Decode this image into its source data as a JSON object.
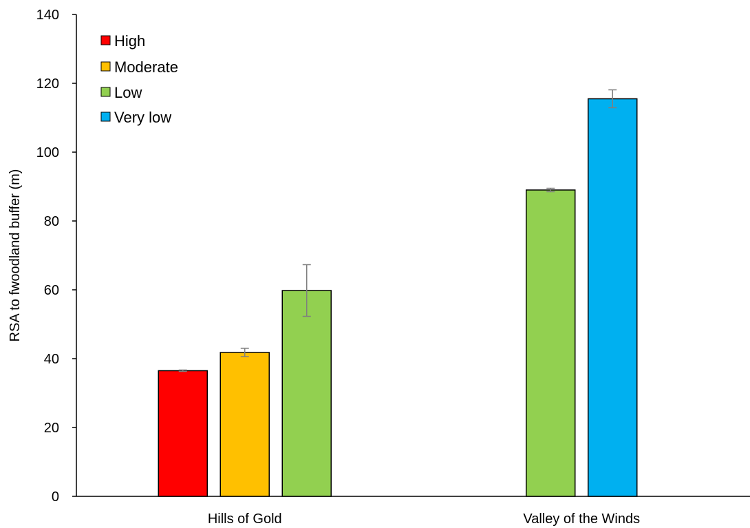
{
  "chart_data": {
    "type": "bar",
    "title": "",
    "xlabel": "",
    "ylabel": "RSA to fwoodland buffer (m)",
    "ylim": [
      0,
      140
    ],
    "yticks": [
      0,
      20,
      40,
      60,
      80,
      100,
      120,
      140
    ],
    "grid": false,
    "legend_position": "top-left",
    "groups": [
      "Hills of Gold",
      "Valley of the Winds"
    ],
    "bars": [
      {
        "group": "Hills of Gold",
        "series": "High",
        "value": 36.5,
        "error": 0.2
      },
      {
        "group": "Hills of Gold",
        "series": "Moderate",
        "value": 41.8,
        "error": 1.2
      },
      {
        "group": "Hills of Gold",
        "series": "Low",
        "value": 59.8,
        "error": 7.5
      },
      {
        "group": "Valley of the Winds",
        "series": "Low",
        "value": 89.0,
        "error": 0.5
      },
      {
        "group": "Valley of the Winds",
        "series": "Very low",
        "value": 115.5,
        "error": 2.6
      }
    ],
    "series": [
      {
        "name": "High",
        "color": "#FF0000"
      },
      {
        "name": "Moderate",
        "color": "#FFC000"
      },
      {
        "name": "Low",
        "color": "#92D050"
      },
      {
        "name": "Very low",
        "color": "#00B0F0"
      }
    ],
    "error_bar_color": "#7F7F7F",
    "bar_outline_color": "#000000"
  }
}
